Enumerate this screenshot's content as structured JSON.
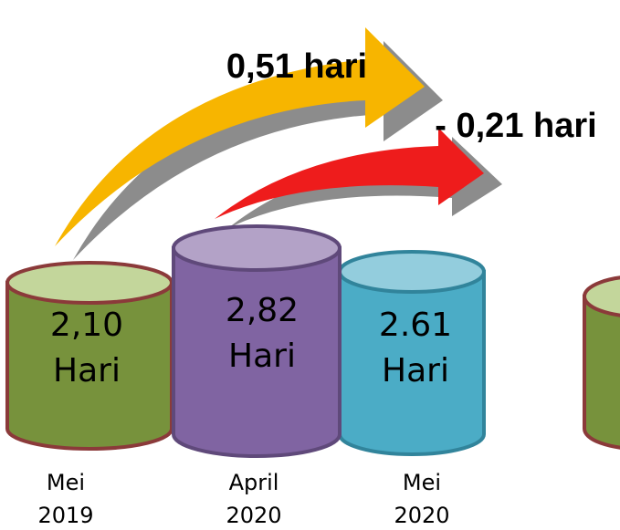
{
  "arrows": [
    {
      "label": "0,51 hari"
    },
    {
      "label": "- 0,21 hari"
    }
  ],
  "cylinders": [
    {
      "value": "2,10",
      "unit": "Hari",
      "period": "Mei",
      "year": "2019"
    },
    {
      "value": "2,82",
      "unit": "Hari",
      "period": "April",
      "year": "2020"
    },
    {
      "value": "2.61",
      "unit": "Hari",
      "period": "Mei",
      "year": "2020"
    }
  ]
}
